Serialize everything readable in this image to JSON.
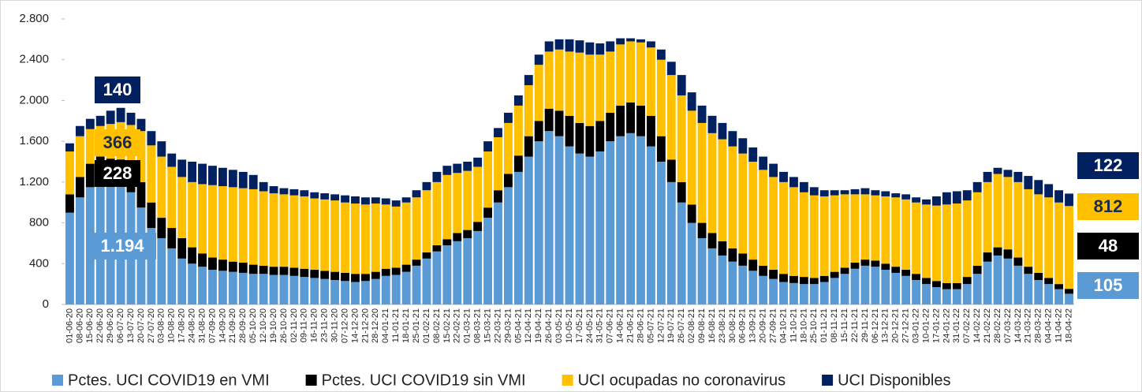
{
  "chart_data": {
    "type": "stacked-bar",
    "categories": [
      "01-06-20",
      "08-06-20",
      "15-06-20",
      "22-06-20",
      "29-06-20",
      "06-07-20",
      "13-07-20",
      "20-07-20",
      "27-07-20",
      "03-08-20",
      "10-08-20",
      "17-08-20",
      "24-08-20",
      "31-08-20",
      "07-09-20",
      "14-09-20",
      "21-09-20",
      "28-09-20",
      "05-10-20",
      "12-10-20",
      "19-10-20",
      "26-10-20",
      "02-11-20",
      "09-11-20",
      "16-11-20",
      "23-11-20",
      "30-11-20",
      "07-12-20",
      "14-12-20",
      "21-12-20",
      "28-12-20",
      "04-01-21",
      "11-01-21",
      "18-01-21",
      "25-01-21",
      "01-02-21",
      "08-02-21",
      "15-02-21",
      "22-02-21",
      "01-03-21",
      "08-03-21",
      "15-03-21",
      "22-03-21",
      "29-03-21",
      "05-04-21",
      "12-04-21",
      "19-04-21",
      "26-04-21",
      "03-05-21",
      "10-05-21",
      "17-05-21",
      "24-05-21",
      "31-05-21",
      "07-06-21",
      "14-06-21",
      "21-06-21",
      "28-06-21",
      "05-07-21",
      "12-07-21",
      "19-07-21",
      "26-07-21",
      "02-08-21",
      "09-08-21",
      "16-08-21",
      "23-08-21",
      "30-08-21",
      "06-09-21",
      "13-09-21",
      "20-09-21",
      "27-09-21",
      "04-10-21",
      "11-10-21",
      "18-10-21",
      "25-10-21",
      "01-11-21",
      "08-11-21",
      "15-11-21",
      "22-11-21",
      "29-11-21",
      "06-12-21",
      "13-12-21",
      "20-12-21",
      "27-12-21",
      "03-01-22",
      "10-01-22",
      "17-01-22",
      "24-01-22",
      "31-01-22",
      "07-02-22",
      "14-02-22",
      "21-02-22",
      "28-02-22",
      "07-03-22",
      "14-03-22",
      "21-03-22",
      "28-03-22",
      "04-04-22",
      "11-04-22",
      "18-04-22"
    ],
    "series": [
      {
        "name": "Pctes. UCI COVID19 en VMI",
        "color": "#5b9bd5",
        "values": [
          900,
          1050,
          1150,
          1250,
          1200,
          1194,
          1100,
          950,
          750,
          650,
          550,
          450,
          400,
          370,
          340,
          330,
          320,
          310,
          300,
          300,
          290,
          290,
          280,
          270,
          260,
          250,
          240,
          230,
          220,
          230,
          250,
          280,
          290,
          320,
          380,
          450,
          520,
          580,
          620,
          650,
          720,
          850,
          1000,
          1150,
          1300,
          1450,
          1600,
          1700,
          1650,
          1550,
          1480,
          1450,
          1500,
          1600,
          1650,
          1680,
          1650,
          1550,
          1400,
          1200,
          1000,
          800,
          650,
          550,
          480,
          420,
          380,
          330,
          280,
          250,
          220,
          210,
          200,
          200,
          220,
          260,
          300,
          350,
          380,
          370,
          340,
          310,
          280,
          240,
          200,
          170,
          150,
          150,
          200,
          300,
          420,
          480,
          450,
          380,
          300,
          240,
          200,
          150,
          105
        ],
        "value_labels": [
          null,
          null,
          null,
          null,
          null,
          "1.194",
          null,
          null,
          null,
          null,
          null,
          null,
          null,
          null,
          null,
          null,
          null,
          null,
          null,
          null,
          null,
          null,
          null,
          null,
          null,
          null,
          null,
          null,
          null,
          null,
          null,
          null,
          null,
          null,
          null,
          null,
          null,
          null,
          null,
          null,
          null,
          null,
          null,
          null,
          null,
          null,
          null,
          null,
          null,
          null,
          null,
          null,
          null,
          null,
          null,
          null,
          null,
          null,
          null,
          null,
          null,
          null,
          null,
          null,
          null,
          null,
          null,
          null,
          null,
          null,
          null,
          null,
          null,
          null,
          null,
          null,
          null,
          null,
          null,
          null,
          null,
          null,
          null,
          null,
          null,
          null,
          null,
          null,
          null,
          null,
          null,
          null,
          null,
          null,
          null,
          null,
          null,
          null,
          "105"
        ]
      },
      {
        "name": "Pctes. UCI COVID19 sin VMI",
        "color": "#000000",
        "values": [
          180,
          200,
          230,
          200,
          230,
          228,
          250,
          250,
          250,
          200,
          200,
          200,
          160,
          130,
          120,
          110,
          100,
          100,
          90,
          80,
          80,
          80,
          80,
          80,
          80,
          80,
          80,
          80,
          80,
          70,
          70,
          70,
          70,
          70,
          60,
          60,
          60,
          60,
          80,
          80,
          90,
          100,
          120,
          130,
          160,
          200,
          200,
          220,
          250,
          300,
          300,
          300,
          300,
          280,
          300,
          300,
          300,
          300,
          250,
          220,
          200,
          180,
          150,
          150,
          140,
          130,
          120,
          110,
          100,
          90,
          80,
          70,
          70,
          60,
          60,
          60,
          60,
          60,
          60,
          60,
          60,
          60,
          60,
          60,
          60,
          60,
          60,
          60,
          70,
          80,
          90,
          80,
          90,
          80,
          70,
          70,
          60,
          50,
          48
        ],
        "value_labels": [
          null,
          null,
          null,
          null,
          null,
          "228",
          null,
          null,
          null,
          null,
          null,
          null,
          null,
          null,
          null,
          null,
          null,
          null,
          null,
          null,
          null,
          null,
          null,
          null,
          null,
          null,
          null,
          null,
          null,
          null,
          null,
          null,
          null,
          null,
          null,
          null,
          null,
          null,
          null,
          null,
          null,
          null,
          null,
          null,
          null,
          null,
          null,
          null,
          null,
          null,
          null,
          null,
          null,
          null,
          null,
          null,
          null,
          null,
          null,
          null,
          null,
          null,
          null,
          null,
          null,
          null,
          null,
          null,
          null,
          null,
          null,
          null,
          null,
          null,
          null,
          null,
          null,
          null,
          null,
          null,
          null,
          null,
          null,
          null,
          null,
          null,
          null,
          null,
          null,
          null,
          null,
          null,
          null,
          null,
          null,
          null,
          null,
          null,
          "48"
        ]
      },
      {
        "name": "UCI ocupadas no coronavirus",
        "color": "#ffc000",
        "values": [
          420,
          400,
          340,
          300,
          340,
          366,
          410,
          500,
          560,
          600,
          600,
          600,
          640,
          680,
          710,
          720,
          730,
          730,
          740,
          730,
          720,
          710,
          710,
          710,
          700,
          700,
          700,
          690,
          690,
          680,
          670,
          630,
          600,
          610,
          610,
          610,
          620,
          630,
          590,
          580,
          540,
          550,
          520,
          500,
          490,
          500,
          550,
          560,
          600,
          630,
          690,
          700,
          650,
          600,
          600,
          600,
          620,
          670,
          750,
          830,
          850,
          920,
          980,
          980,
          1000,
          1000,
          980,
          960,
          940,
          910,
          900,
          870,
          830,
          810,
          780,
          750,
          720,
          670,
          640,
          640,
          660,
          680,
          690,
          700,
          720,
          740,
          770,
          780,
          750,
          720,
          690,
          720,
          710,
          740,
          760,
          770,
          790,
          800,
          812
        ],
        "value_labels": [
          null,
          null,
          null,
          null,
          null,
          "366",
          null,
          null,
          null,
          null,
          null,
          null,
          null,
          null,
          null,
          null,
          null,
          null,
          null,
          null,
          null,
          null,
          null,
          null,
          null,
          null,
          null,
          null,
          null,
          null,
          null,
          null,
          null,
          null,
          null,
          null,
          null,
          null,
          null,
          null,
          null,
          null,
          null,
          null,
          null,
          null,
          null,
          null,
          null,
          null,
          null,
          null,
          null,
          null,
          null,
          null,
          null,
          null,
          null,
          null,
          null,
          null,
          null,
          null,
          null,
          null,
          null,
          null,
          null,
          null,
          null,
          null,
          null,
          null,
          null,
          null,
          null,
          null,
          null,
          null,
          null,
          null,
          null,
          null,
          null,
          null,
          null,
          null,
          null,
          null,
          null,
          null,
          null,
          null,
          null,
          null,
          null,
          null,
          "812"
        ]
      },
      {
        "name": "UCI Disponibles",
        "color": "#002060",
        "values": [
          80,
          100,
          100,
          100,
          130,
          140,
          120,
          120,
          140,
          150,
          130,
          170,
          200,
          200,
          190,
          180,
          170,
          160,
          140,
          90,
          70,
          60,
          60,
          60,
          60,
          60,
          60,
          70,
          70,
          70,
          60,
          60,
          60,
          50,
          70,
          80,
          100,
          90,
          90,
          90,
          90,
          100,
          90,
          100,
          100,
          100,
          100,
          100,
          100,
          120,
          120,
          120,
          110,
          100,
          60,
          30,
          30,
          60,
          100,
          130,
          200,
          180,
          170,
          170,
          160,
          150,
          150,
          140,
          130,
          130,
          100,
          100,
          100,
          80,
          60,
          50,
          40,
          50,
          60,
          50,
          50,
          40,
          50,
          50,
          50,
          90,
          120,
          120,
          100,
          100,
          100,
          60,
          70,
          100,
          130,
          140,
          130,
          120,
          122
        ],
        "value_labels": [
          null,
          null,
          null,
          null,
          null,
          "140",
          null,
          null,
          null,
          null,
          null,
          null,
          null,
          null,
          null,
          null,
          null,
          null,
          null,
          null,
          null,
          null,
          null,
          null,
          null,
          null,
          null,
          null,
          null,
          null,
          null,
          null,
          null,
          null,
          null,
          null,
          null,
          null,
          null,
          null,
          null,
          null,
          null,
          null,
          null,
          null,
          null,
          null,
          null,
          null,
          null,
          null,
          null,
          null,
          null,
          null,
          null,
          null,
          null,
          null,
          null,
          null,
          null,
          null,
          null,
          null,
          null,
          null,
          null,
          null,
          null,
          null,
          null,
          null,
          null,
          null,
          null,
          null,
          null,
          null,
          null,
          null,
          null,
          null,
          null,
          null,
          null,
          null,
          null,
          null,
          null,
          null,
          null,
          null,
          null,
          null,
          null,
          null,
          "122"
        ]
      }
    ],
    "ylim": [
      0,
      2800
    ],
    "yticks": [
      0,
      400,
      800,
      {
        "value": 1200,
        "label": "1.200"
      },
      {
        "value": 1600,
        "label": "1.600"
      },
      {
        "value": 2000,
        "label": "2.000"
      },
      {
        "value": 2400,
        "label": "2.400"
      },
      {
        "value": 2800,
        "label": "2.800"
      }
    ],
    "grid": false,
    "legend": "bottom"
  }
}
